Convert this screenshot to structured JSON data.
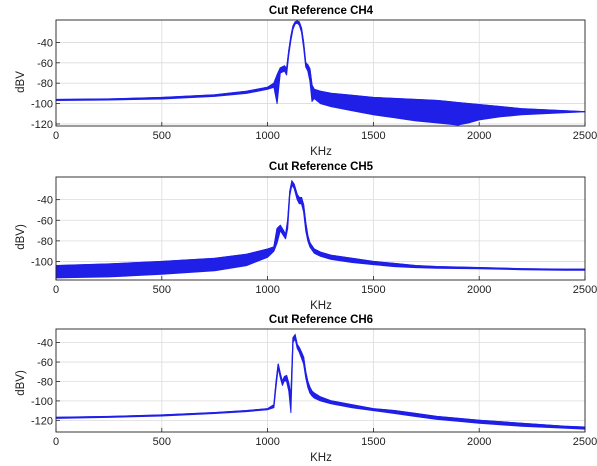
{
  "chart_data": [
    {
      "type": "line",
      "title": "Cut Reference CH4",
      "xlabel": "KHz",
      "ylabel": "dBV",
      "xlim": [
        0,
        2500
      ],
      "ylim": [
        -122,
        -18
      ],
      "xticks": [
        0,
        500,
        1000,
        1500,
        2000,
        2500
      ],
      "yticks": [
        -40,
        -60,
        -80,
        -100,
        -120
      ],
      "grid": true,
      "color": "#1f1fe8",
      "series": [
        {
          "x": [
            0,
            250,
            500,
            750,
            900,
            1000,
            1030,
            1045,
            1060,
            1080,
            1090,
            1100,
            1110,
            1120,
            1130,
            1140,
            1150,
            1160,
            1170,
            1180,
            1190,
            1200,
            1210,
            1220,
            1250,
            1300,
            1400,
            1500,
            1600,
            1700,
            1800,
            1850,
            1900,
            1950,
            2000,
            2100,
            2200,
            2300,
            2400,
            2500
          ],
          "y_upper": [
            -96,
            -95.5,
            -94,
            -91.5,
            -88,
            -84,
            -80,
            -72,
            -65,
            -63,
            -66,
            -48,
            -34,
            -24,
            -20,
            -19,
            -20,
            -26,
            -40,
            -60,
            -62,
            -66,
            -82,
            -86,
            -88,
            -90,
            -92,
            -94,
            -95,
            -96,
            -97,
            -98,
            -99,
            -100,
            -101,
            -103,
            -105,
            -106,
            -107,
            -108
          ],
          "y_lower": [
            -97,
            -96.5,
            -95.5,
            -93,
            -90,
            -86,
            -84,
            -100,
            -70,
            -68,
            -72,
            -52,
            -38,
            -27,
            -22,
            -21,
            -23,
            -30,
            -45,
            -64,
            -68,
            -78,
            -98,
            -95,
            -100,
            -103,
            -107,
            -111,
            -114,
            -117,
            -119,
            -120,
            -121,
            -119,
            -116,
            -113,
            -111,
            -110,
            -109,
            -108
          ]
        }
      ]
    },
    {
      "type": "line",
      "title": "Cut Reference CH5",
      "xlabel": "KHz",
      "ylabel": "dBV)",
      "xlim": [
        0,
        2500
      ],
      "ylim": [
        -118,
        -18
      ],
      "xticks": [
        0,
        500,
        1000,
        1500,
        2000,
        2500
      ],
      "yticks": [
        -40,
        -60,
        -80,
        -100
      ],
      "grid": true,
      "color": "#1f1fe8",
      "series": [
        {
          "x": [
            0,
            250,
            500,
            750,
            900,
            1000,
            1030,
            1045,
            1060,
            1075,
            1085,
            1095,
            1105,
            1115,
            1125,
            1140,
            1150,
            1160,
            1170,
            1180,
            1190,
            1200,
            1220,
            1250,
            1300,
            1400,
            1500,
            1600,
            1700,
            1800,
            2000,
            2200,
            2400,
            2500
          ],
          "y_upper": [
            -104,
            -102.5,
            -100,
            -97,
            -93,
            -88,
            -86,
            -68,
            -65,
            -70,
            -74,
            -60,
            -32,
            -22,
            -25,
            -35,
            -38,
            -38,
            -45,
            -62,
            -75,
            -82,
            -88,
            -91,
            -94,
            -97,
            -100,
            -102,
            -104,
            -105,
            -106,
            -107,
            -107.5,
            -107.5
          ],
          "y_lower": [
            -116,
            -115,
            -112.5,
            -109,
            -104,
            -96,
            -90,
            -82,
            -70,
            -75,
            -78,
            -68,
            -36,
            -26,
            -29,
            -40,
            -44,
            -44,
            -52,
            -70,
            -80,
            -86,
            -92,
            -95,
            -98,
            -101,
            -103,
            -105,
            -106,
            -106.5,
            -107,
            -108,
            -108.5,
            -108.5
          ]
        }
      ]
    },
    {
      "type": "line",
      "title": "Cut Reference CH6",
      "xlabel": "KHz",
      "ylabel": "dBV)",
      "xlim": [
        0,
        2500
      ],
      "ylim": [
        -132,
        -26
      ],
      "xticks": [
        0,
        500,
        1000,
        1500,
        2000,
        2500
      ],
      "yticks": [
        -40,
        -60,
        -80,
        -100,
        -120
      ],
      "grid": true,
      "color": "#1f1fe8",
      "series": [
        {
          "x": [
            0,
            250,
            500,
            750,
            900,
            1000,
            1030,
            1040,
            1050,
            1060,
            1070,
            1080,
            1090,
            1100,
            1110,
            1120,
            1130,
            1140,
            1150,
            1160,
            1170,
            1180,
            1190,
            1200,
            1210,
            1220,
            1250,
            1300,
            1400,
            1500,
            1600,
            1700,
            1800,
            1900,
            2000,
            2200,
            2400,
            2500
          ],
          "y_upper": [
            -117,
            -116,
            -114.5,
            -112,
            -110,
            -108,
            -104,
            -80,
            -62,
            -72,
            -80,
            -75,
            -74,
            -82,
            -96,
            -35,
            -32,
            -42,
            -45,
            -50,
            -55,
            -70,
            -80,
            -86,
            -90,
            -92,
            -96,
            -100,
            -104,
            -108,
            -110,
            -113,
            -116,
            -118,
            -120,
            -123,
            -126,
            -127
          ],
          "y_lower": [
            -118,
            -117,
            -115.5,
            -113,
            -111,
            -109,
            -107,
            -85,
            -66,
            -76,
            -84,
            -79,
            -80,
            -90,
            -112,
            -40,
            -36,
            -46,
            -50,
            -56,
            -62,
            -76,
            -86,
            -92,
            -95,
            -97,
            -100,
            -103,
            -107,
            -110,
            -113,
            -116,
            -119,
            -121,
            -123,
            -126,
            -128,
            -129
          ]
        }
      ]
    }
  ]
}
